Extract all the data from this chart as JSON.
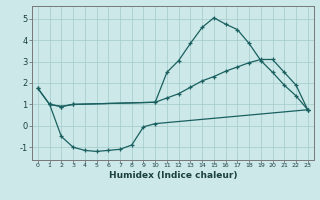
{
  "xlabel": "Humidex (Indice chaleur)",
  "background_color": "#cde8e8",
  "grid_color": "#aacece",
  "line_color": "#1a6060",
  "x_ticks": [
    0,
    1,
    2,
    3,
    4,
    5,
    6,
    7,
    8,
    9,
    10,
    11,
    12,
    13,
    14,
    15,
    16,
    17,
    18,
    19,
    20,
    21,
    22,
    23
  ],
  "ylim": [
    -1.6,
    5.6
  ],
  "xlim": [
    -0.5,
    23.5
  ],
  "curve1_x": [
    0,
    1,
    2,
    3,
    10,
    11,
    12,
    13,
    14,
    15,
    16,
    17,
    18,
    19,
    20,
    21,
    22,
    23
  ],
  "curve1_y": [
    1.75,
    1.0,
    0.9,
    1.0,
    1.1,
    2.5,
    3.05,
    3.85,
    4.6,
    5.05,
    4.75,
    4.5,
    3.85,
    3.05,
    2.5,
    1.9,
    1.4,
    0.75
  ],
  "curve2_x": [
    0,
    1,
    2,
    3,
    10,
    11,
    12,
    13,
    14,
    15,
    16,
    17,
    18,
    19,
    20,
    21,
    22,
    23
  ],
  "curve2_y": [
    1.75,
    1.0,
    0.9,
    1.0,
    1.1,
    1.3,
    1.5,
    1.8,
    2.1,
    2.3,
    2.55,
    2.75,
    2.95,
    3.1,
    3.1,
    2.5,
    1.9,
    0.75
  ],
  "curve3_x": [
    1,
    2,
    3,
    4,
    5,
    6,
    7,
    8,
    9,
    10,
    23
  ],
  "curve3_y": [
    1.0,
    -0.5,
    -1.0,
    -1.15,
    -1.2,
    -1.15,
    -1.1,
    -0.9,
    -0.05,
    0.1,
    0.75
  ]
}
